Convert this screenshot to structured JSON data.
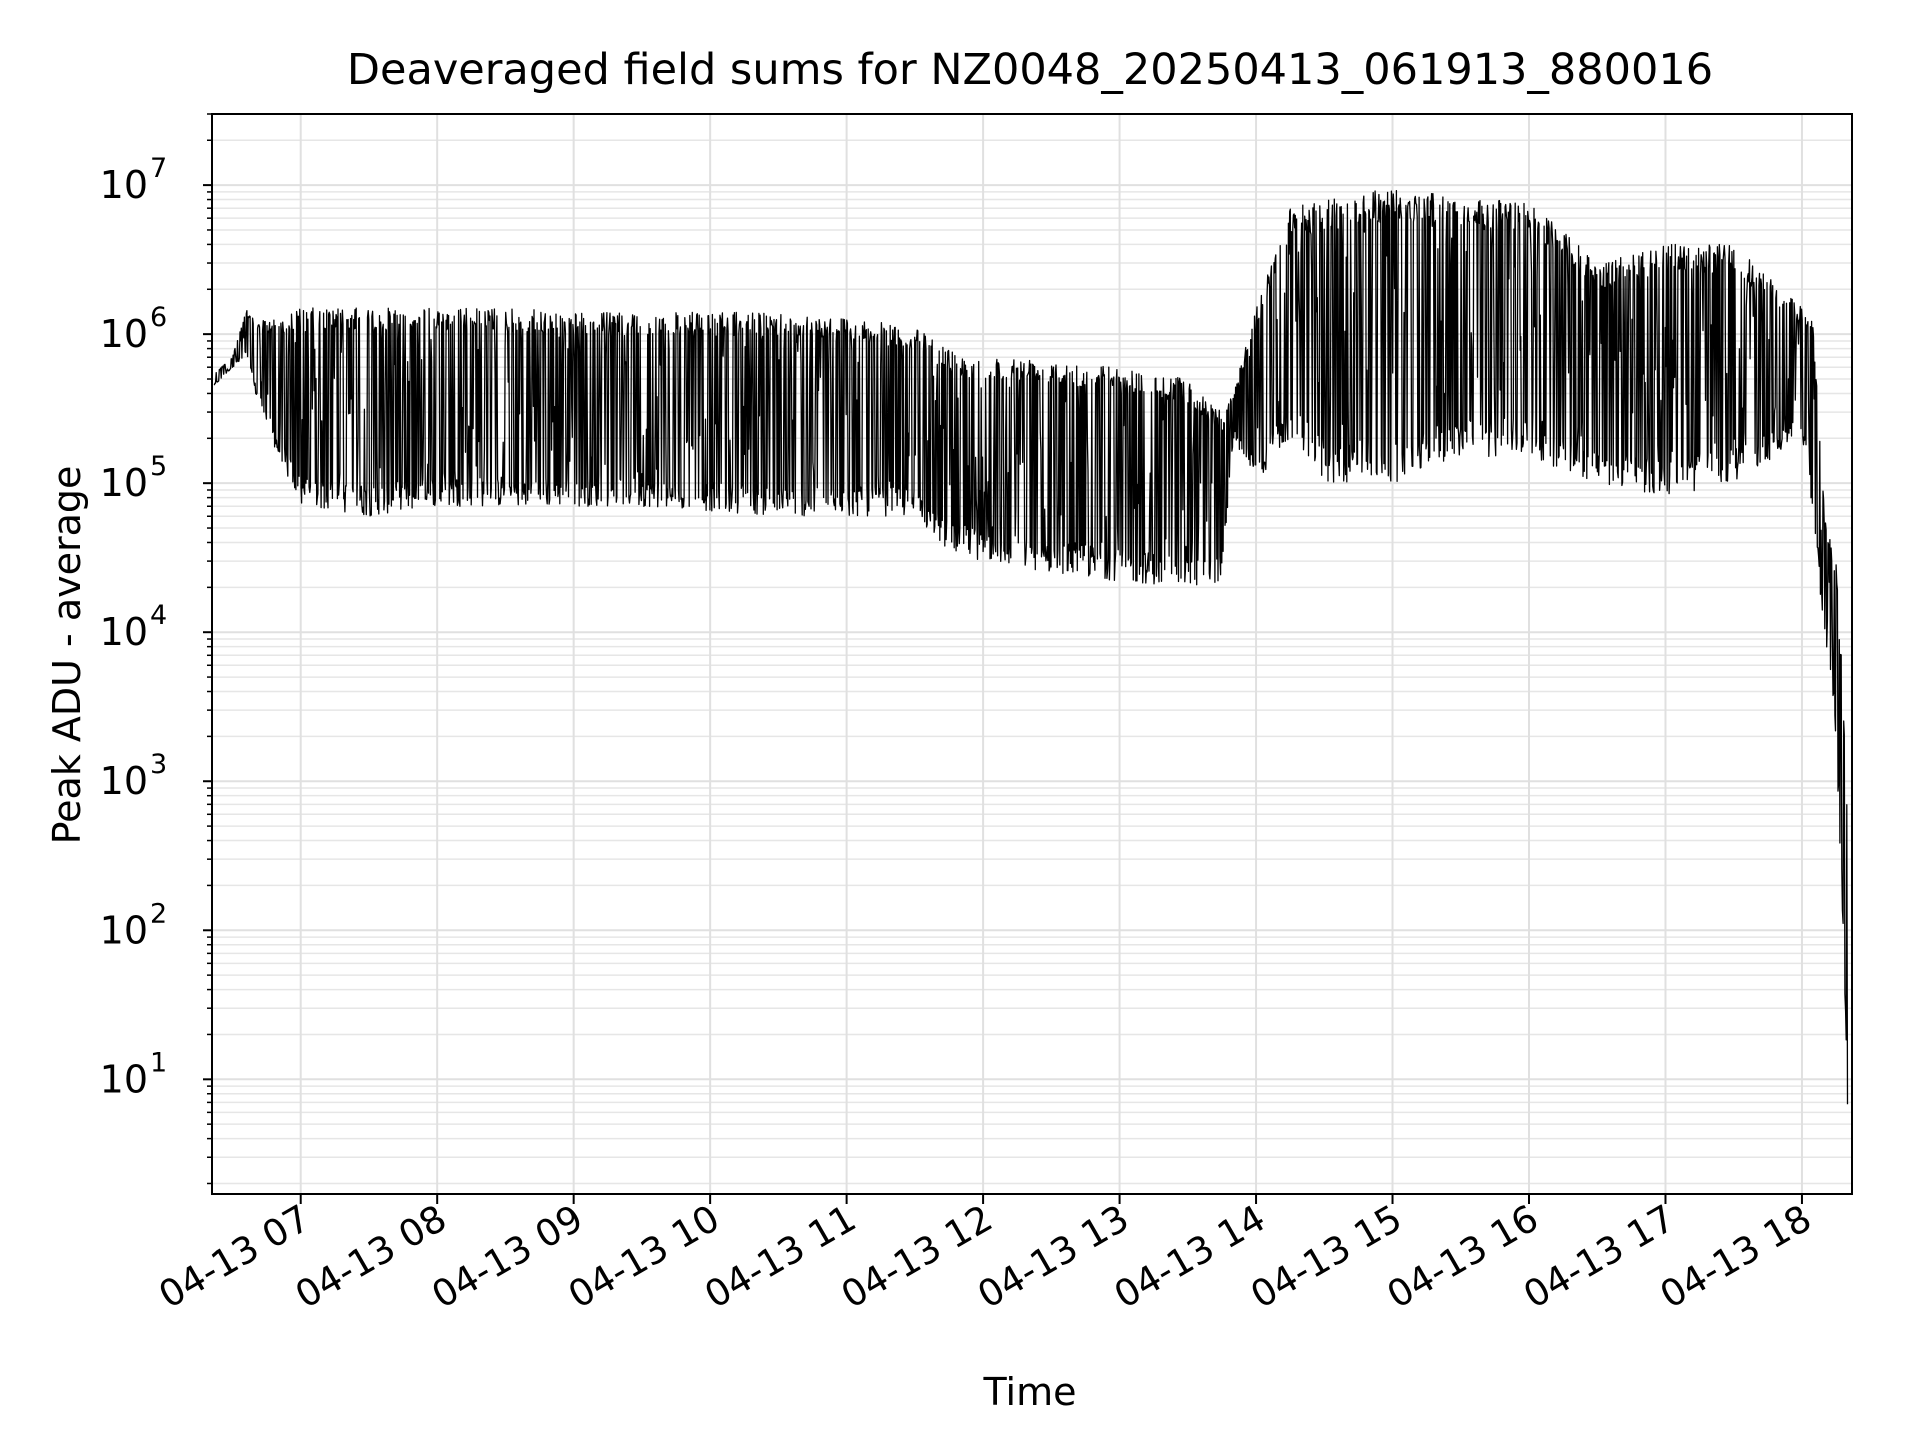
{
  "chart_data": {
    "type": "line",
    "title": "Deaveraged field sums for NZ0048_20250413_061913_880016",
    "xlabel": "Time",
    "ylabel": "Peak ADU - average",
    "yscale": "log",
    "ylim": [
      1.7,
      30000000
    ],
    "xlim": [
      "2025-04-13 06:21",
      "2025-04-13 18:22"
    ],
    "grid": true,
    "line_color": "#000000",
    "x_ticks": [
      "04-13 07",
      "04-13 08",
      "04-13 09",
      "04-13 10",
      "04-13 11",
      "04-13 12",
      "04-13 13",
      "04-13 14",
      "04-13 15",
      "04-13 16",
      "04-13 17",
      "04-13 18"
    ],
    "y_ticks": [
      {
        "base": "10",
        "exp": "1",
        "value": 10
      },
      {
        "base": "10",
        "exp": "2",
        "value": 100
      },
      {
        "base": "10",
        "exp": "3",
        "value": 1000
      },
      {
        "base": "10",
        "exp": "4",
        "value": 10000
      },
      {
        "base": "10",
        "exp": "5",
        "value": 100000
      },
      {
        "base": "10",
        "exp": "6",
        "value": 1000000
      },
      {
        "base": "10",
        "exp": "7",
        "value": 10000000
      }
    ],
    "series": [
      {
        "x": [
          "2025-04-13 06:22",
          "2025-04-13 06:30",
          "2025-04-13 06:36",
          "2025-04-13 06:40",
          "2025-04-13 06:50",
          "2025-04-13 07:00",
          "2025-04-13 07:30",
          "2025-04-13 08:00",
          "2025-04-13 08:30",
          "2025-04-13 09:00",
          "2025-04-13 09:30",
          "2025-04-13 10:00",
          "2025-04-13 10:30",
          "2025-04-13 11:00",
          "2025-04-13 11:30",
          "2025-04-13 11:45",
          "2025-04-13 12:00",
          "2025-04-13 12:30",
          "2025-04-13 13:00",
          "2025-04-13 13:30",
          "2025-04-13 13:45",
          "2025-04-13 13:50",
          "2025-04-13 14:00",
          "2025-04-13 14:15",
          "2025-04-13 14:30",
          "2025-04-13 15:00",
          "2025-04-13 15:30",
          "2025-04-13 16:00",
          "2025-04-13 16:30",
          "2025-04-13 17:00",
          "2025-04-13 17:30",
          "2025-04-13 18:00",
          "2025-04-13 18:05",
          "2025-04-13 18:10",
          "2025-04-13 18:15",
          "2025-04-13 18:18",
          "2025-04-13 18:20"
        ],
        "upper": [
          550000,
          700000,
          1500000,
          1200000,
          1300000,
          1500000,
          1500000,
          1500000,
          1500000,
          1400000,
          1400000,
          1400000,
          1400000,
          1300000,
          1100000,
          800000,
          700000,
          700000,
          600000,
          500000,
          300000,
          400000,
          1500000,
          7000000,
          8000000,
          10000000,
          8000000,
          8000000,
          3000000,
          4000000,
          4000000,
          1500000,
          1200000,
          60000,
          30000,
          5000,
          600
        ],
        "lower": [
          450000,
          600000,
          700000,
          400000,
          150000,
          70000,
          60000,
          70000,
          70000,
          70000,
          70000,
          65000,
          60000,
          60000,
          60000,
          35000,
          30000,
          25000,
          22000,
          20000,
          22000,
          200000,
          100000,
          200000,
          100000,
          100000,
          150000,
          150000,
          100000,
          80000,
          100000,
          200000,
          60000,
          8000,
          2000,
          100,
          4
        ]
      }
    ]
  }
}
